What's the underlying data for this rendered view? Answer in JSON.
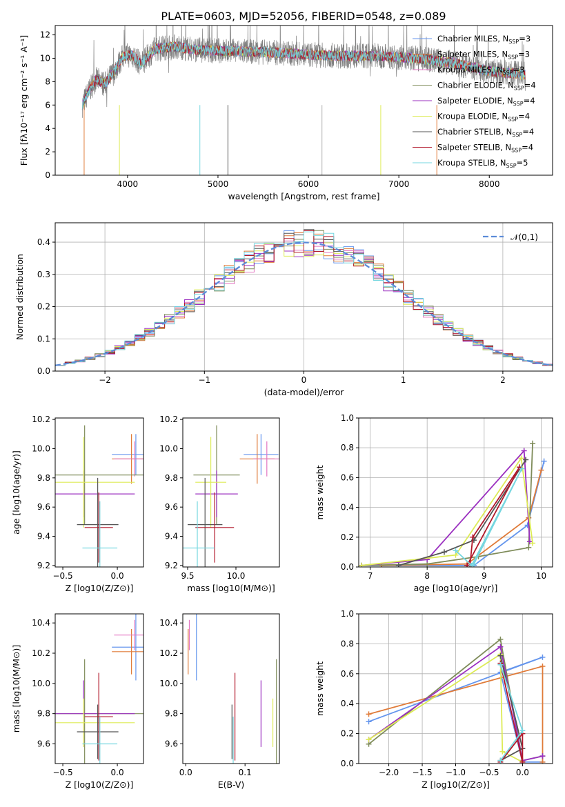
{
  "figure": {
    "title": "PLATE=0603, MJD=52056, FIBERID=0548, z=0.089"
  },
  "chart_data": [
    {
      "type": "line",
      "xlabel": "wavelength [Angstrom, rest frame]",
      "ylabel": "Flux [fλ10⁻¹⁷ erg cm⁻² s⁻¹ A⁻¹]",
      "xlim": [
        3200,
        8700
      ],
      "ylim": [
        0,
        12.8
      ],
      "xticks": [
        4000,
        5000,
        6000,
        7000,
        8000
      ],
      "yticks": [
        0,
        2,
        4,
        6,
        8,
        10,
        12
      ],
      "legend_position": "top-right",
      "data_color": "#808080",
      "data_range": [
        3500,
        8400
      ],
      "spectrum_profile": {
        "x": [
          3500,
          3560,
          3650,
          3750,
          3850,
          3950,
          4050,
          4150,
          4300,
          4500,
          4800,
          5200,
          5600,
          6000,
          6400,
          6800,
          7200,
          7600,
          8000,
          8400
        ],
        "y": [
          6.0,
          7.0,
          8.2,
          7.8,
          8.8,
          10.2,
          10.3,
          9.5,
          10.8,
          11.0,
          10.7,
          10.6,
          10.5,
          10.3,
          10.2,
          10.2,
          10.0,
          9.6,
          8.9,
          8.6
        ]
      },
      "series": [
        {
          "name": "Chabrier MILES, N_SSP=3",
          "color": "#6495ED"
        },
        {
          "name": "Salpeter MILES, N_SSP=3",
          "color": "#E07B39"
        },
        {
          "name": "Kroupa MILES, N_SSP=3",
          "color": "#E377C2"
        },
        {
          "name": "Chabrier ELODIE, N_SSP=4",
          "color": "#7F8C5A"
        },
        {
          "name": "Salpeter ELODIE, N_SSP=4",
          "color": "#9B30C0"
        },
        {
          "name": "Kroupa ELODIE, N_SSP=4",
          "color": "#DDEB55"
        },
        {
          "name": "Chabrier STELIB, N_SSP=4",
          "color": "#555555"
        },
        {
          "name": "Salpeter STELIB, N_SSP=4",
          "color": "#B2182B"
        },
        {
          "name": "Kroupa STELIB, N_SSP=5",
          "color": "#76D7E0"
        }
      ]
    },
    {
      "type": "line",
      "xlabel": "(data-model)/error",
      "ylabel": "Normed distribution",
      "xlim": [
        -2.5,
        2.5
      ],
      "ylim": [
        0,
        0.46
      ],
      "xticks": [
        -2,
        -1,
        0,
        1,
        2
      ],
      "yticks": [
        0.0,
        0.1,
        0.2,
        0.3,
        0.4
      ],
      "grid": true,
      "legend_position": "top-right",
      "reference_curve": {
        "name": "N(0,1)",
        "mean": 0,
        "std": 1,
        "color": "#5B8BD8"
      },
      "histogram_bin_width": 0.1
    },
    {
      "type": "scatter",
      "xlabel": "Z [log10(Z/Z⊙)]",
      "ylabel": "age [log10(age/yr)]",
      "xlim": [
        -0.57,
        0.24
      ],
      "ylim": [
        9.19,
        10.21
      ],
      "xticks": [
        -0.5,
        0.0
      ],
      "yticks": [
        9.2,
        9.4,
        9.6,
        9.8,
        10.0,
        10.2
      ],
      "points": [
        {
          "x": 0.17,
          "y": 9.96,
          "xerr": 0.22,
          "yerr": 0.14,
          "color": "#6495ED"
        },
        {
          "x": 0.13,
          "y": 9.93,
          "xerr": 0.18,
          "yerr": 0.17,
          "color": "#E07B39"
        },
        {
          "x": 0.16,
          "y": 9.93,
          "xerr": 0.19,
          "yerr": 0.12,
          "color": "#E377C2"
        },
        {
          "x": -0.3,
          "y": 9.82,
          "xerr": 0.55,
          "yerr": 0.34,
          "color": "#7F8C5A"
        },
        {
          "x": -0.31,
          "y": 9.69,
          "xerr": 0.47,
          "yerr": 0.16,
          "color": "#9B30C0"
        },
        {
          "x": -0.31,
          "y": 9.77,
          "xerr": 0.47,
          "yerr": 0.31,
          "color": "#DDEB55"
        },
        {
          "x": -0.18,
          "y": 9.48,
          "xerr": 0.19,
          "yerr": 0.32,
          "color": "#555555"
        },
        {
          "x": -0.17,
          "y": 9.46,
          "xerr": 0.13,
          "yerr": 0.24,
          "color": "#B2182B"
        },
        {
          "x": -0.16,
          "y": 9.32,
          "xerr": 0.16,
          "yerr": 0.32,
          "color": "#76D7E0"
        }
      ]
    },
    {
      "type": "scatter",
      "xlabel": "mass [log10(M/M⊙)]",
      "ylabel": "",
      "xlim": [
        9.45,
        10.45
      ],
      "ylim": [
        9.19,
        10.21
      ],
      "xticks": [
        9.5,
        10.0
      ],
      "yticks": [
        9.2,
        9.4,
        9.6,
        9.8,
        10.0,
        10.2
      ],
      "points": [
        {
          "x": 10.26,
          "y": 9.96,
          "xerr": 0.18,
          "yerr": 0.14,
          "color": "#6495ED"
        },
        {
          "x": 10.22,
          "y": 9.93,
          "xerr": 0.18,
          "yerr": 0.17,
          "color": "#E07B39"
        },
        {
          "x": 10.32,
          "y": 9.93,
          "xerr": 0.14,
          "yerr": 0.12,
          "color": "#E377C2"
        },
        {
          "x": 9.8,
          "y": 9.82,
          "xerr": 0.24,
          "yerr": 0.34,
          "color": "#7F8C5A"
        },
        {
          "x": 9.8,
          "y": 9.69,
          "xerr": 0.22,
          "yerr": 0.16,
          "color": "#9B30C0"
        },
        {
          "x": 9.74,
          "y": 9.77,
          "xerr": 0.16,
          "yerr": 0.31,
          "color": "#DDEB55"
        },
        {
          "x": 9.68,
          "y": 9.48,
          "xerr": 0.18,
          "yerr": 0.32,
          "color": "#555555"
        },
        {
          "x": 9.78,
          "y": 9.46,
          "xerr": 0.2,
          "yerr": 0.24,
          "color": "#B2182B"
        },
        {
          "x": 9.6,
          "y": 9.32,
          "xerr": 0.18,
          "yerr": 0.32,
          "color": "#76D7E0"
        }
      ]
    },
    {
      "type": "line",
      "xlabel": "age [log10(age/yr)]",
      "ylabel": "mass weight",
      "xlim": [
        6.8,
        10.2
      ],
      "ylim": [
        0,
        1.0
      ],
      "xticks": [
        7,
        8,
        9,
        10
      ],
      "yticks": [
        0.0,
        0.2,
        0.4,
        0.6,
        0.8,
        1.0
      ],
      "grid": true,
      "series": [
        {
          "color": "#6495ED",
          "x": [
            6.85,
            8.82,
            9.76,
            10.05
          ],
          "y": [
            0.01,
            0.01,
            0.28,
            0.71
          ]
        },
        {
          "color": "#E07B39",
          "x": [
            7.2,
            8.7,
            9.78,
            10.0
          ],
          "y": [
            0.01,
            0.02,
            0.33,
            0.65
          ]
        },
        {
          "color": "#7F8C5A",
          "x": [
            6.85,
            8.0,
            8.9,
            9.78,
            9.85
          ],
          "y": [
            0.01,
            0.02,
            0.07,
            0.13,
            0.83
          ]
        },
        {
          "color": "#9B30C0",
          "x": [
            6.85,
            8.0,
            9.7,
            9.8
          ],
          "y": [
            0.01,
            0.05,
            0.78,
            0.17
          ]
        },
        {
          "color": "#DDEB55",
          "x": [
            6.85,
            8.5,
            9.65,
            9.85
          ],
          "y": [
            0.01,
            0.08,
            0.73,
            0.16
          ]
        },
        {
          "color": "#555555",
          "x": [
            7.5,
            8.3,
            8.82,
            9.73
          ],
          "y": [
            0.01,
            0.1,
            0.18,
            0.72
          ]
        },
        {
          "color": "#B2182B",
          "x": [
            8.75,
            8.8,
            9.62,
            8.7
          ],
          "y": [
            0.01,
            0.2,
            0.67,
            0.01
          ]
        },
        {
          "color": "#76D7E0",
          "x": [
            8.5,
            8.78,
            9.66,
            8.82
          ],
          "y": [
            0.11,
            0.01,
            0.66,
            0.02
          ]
        }
      ]
    },
    {
      "type": "scatter",
      "xlabel": "Z [log10(Z/Z⊙)]",
      "ylabel": "mass [log10(M/M⊙)]",
      "xlim": [
        -0.57,
        0.24
      ],
      "ylim": [
        9.47,
        10.46
      ],
      "xticks": [
        -0.5,
        0.0
      ],
      "yticks": [
        9.6,
        9.8,
        10.0,
        10.2,
        10.4
      ],
      "points": [
        {
          "x": 0.17,
          "y": 10.24,
          "xerr": 0.22,
          "yerr": 0.22,
          "color": "#6495ED"
        },
        {
          "x": 0.13,
          "y": 10.21,
          "xerr": 0.18,
          "yerr": 0.15,
          "color": "#E07B39"
        },
        {
          "x": 0.16,
          "y": 10.32,
          "xerr": 0.19,
          "yerr": 0.1,
          "color": "#E377C2"
        },
        {
          "x": -0.3,
          "y": 9.8,
          "xerr": 0.55,
          "yerr": 0.36,
          "color": "#7F8C5A"
        },
        {
          "x": -0.31,
          "y": 9.8,
          "xerr": 0.47,
          "yerr": 0.22,
          "color": "#9B30C0"
        },
        {
          "x": -0.31,
          "y": 9.74,
          "xerr": 0.47,
          "yerr": 0.16,
          "color": "#DDEB55"
        },
        {
          "x": -0.18,
          "y": 9.68,
          "xerr": 0.19,
          "yerr": 0.18,
          "color": "#555555"
        },
        {
          "x": -0.17,
          "y": 9.78,
          "xerr": 0.13,
          "yerr": 0.29,
          "color": "#B2182B"
        },
        {
          "x": -0.16,
          "y": 9.6,
          "xerr": 0.16,
          "yerr": 0.18,
          "color": "#76D7E0"
        }
      ]
    },
    {
      "type": "scatter",
      "xlabel": "E(B-V)",
      "ylabel": "",
      "xlim": [
        -0.005,
        0.158
      ],
      "ylim": [
        9.47,
        10.46
      ],
      "xticks": [
        0.0,
        0.1
      ],
      "yticks": [
        9.6,
        9.8,
        10.0,
        10.2,
        10.4
      ],
      "points": [
        {
          "x": 0.018,
          "y": 10.24,
          "yerr": 0.22,
          "color": "#6495ED"
        },
        {
          "x": 0.004,
          "y": 10.21,
          "yerr": 0.15,
          "color": "#E07B39"
        },
        {
          "x": 0.006,
          "y": 10.32,
          "yerr": 0.1,
          "color": "#E377C2"
        },
        {
          "x": 0.153,
          "y": 9.8,
          "yerr": 0.36,
          "color": "#7F8C5A"
        },
        {
          "x": 0.127,
          "y": 9.8,
          "yerr": 0.22,
          "color": "#9B30C0"
        },
        {
          "x": 0.147,
          "y": 9.74,
          "yerr": 0.16,
          "color": "#DDEB55"
        },
        {
          "x": 0.078,
          "y": 9.68,
          "yerr": 0.18,
          "color": "#555555"
        },
        {
          "x": 0.083,
          "y": 9.78,
          "yerr": 0.29,
          "color": "#B2182B"
        },
        {
          "x": 0.08,
          "y": 9.6,
          "yerr": 0.18,
          "color": "#76D7E0"
        }
      ]
    },
    {
      "type": "line",
      "xlabel": "Z [log10(Z/Z⊙)]",
      "ylabel": "mass weight",
      "xlim": [
        -2.45,
        0.45
      ],
      "ylim": [
        0,
        1.0
      ],
      "xticks": [
        -2.0,
        -1.5,
        -1.0,
        -0.5,
        0.0
      ],
      "yticks": [
        0.0,
        0.2,
        0.4,
        0.6,
        0.8,
        1.0
      ],
      "grid": true,
      "series": [
        {
          "color": "#6495ED",
          "x": [
            -2.3,
            0.3,
            -0.33,
            0.0,
            0.3
          ],
          "y": [
            0.28,
            0.71,
            0.61,
            0.01,
            0.01
          ]
        },
        {
          "color": "#E07B39",
          "x": [
            -2.3,
            0.3,
            0.3
          ],
          "y": [
            0.33,
            0.65,
            0.01
          ]
        },
        {
          "color": "#7F8C5A",
          "x": [
            -2.3,
            -0.33,
            0.0,
            0.3
          ],
          "y": [
            0.13,
            0.83,
            0.02,
            0.05
          ]
        },
        {
          "color": "#9B30C0",
          "x": [
            -2.3,
            -0.33,
            0.0,
            0.3
          ],
          "y": [
            0.16,
            0.78,
            0.02,
            0.05
          ]
        },
        {
          "color": "#DDEB55",
          "x": [
            -2.3,
            -0.33,
            -0.3,
            0.0
          ],
          "y": [
            0.16,
            0.73,
            0.08,
            0.01
          ]
        },
        {
          "color": "#555555",
          "x": [
            -0.33,
            0.0,
            -0.33
          ],
          "y": [
            0.02,
            0.1,
            0.72
          ]
        },
        {
          "color": "#B2182B",
          "x": [
            -0.33,
            0.0,
            0.0,
            -0.33
          ],
          "y": [
            0.01,
            0.2,
            0.01,
            0.67
          ]
        },
        {
          "color": "#76D7E0",
          "x": [
            -0.33,
            0.0,
            -0.33
          ],
          "y": [
            0.02,
            0.22,
            0.66
          ]
        }
      ]
    }
  ]
}
